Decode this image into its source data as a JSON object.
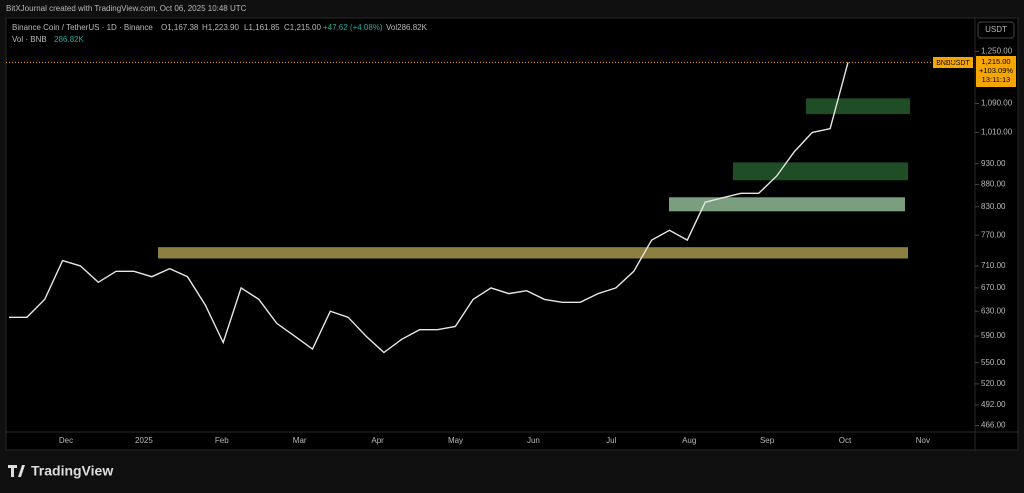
{
  "header": {
    "credit": "BitXJournal created with TradingView.com, Oct 06, 2025 10:48 UTC",
    "symbol": "Binance Coin / TetherUS · 1D · Binance",
    "open": "O1,167.38",
    "high": "H1,223.90",
    "low": "L1,161.85",
    "close": "C1,215.00",
    "change": "+47.62 (+4.08%)",
    "volume": "Vol286.82K",
    "vol_label": "Vol · BNB",
    "vol_value": "286.82K"
  },
  "currency": "USDT",
  "price_tag": {
    "symbol": "BNBUSDT",
    "price": "1,215.00",
    "change": "+103.09%",
    "countdown": "13:11:13"
  },
  "footer": {
    "brand": "TradingView"
  },
  "chart_data": {
    "type": "line",
    "log_scale": true,
    "month_labels": [
      "Dec",
      "2025",
      "Feb",
      "Mar",
      "Apr",
      "May",
      "Jun",
      "Jul",
      "Aug",
      "Sep",
      "Oct",
      "Nov"
    ],
    "series": [
      {
        "name": "BNBUSDT",
        "color": "#e6e6e6",
        "values": [
          620,
          620,
          650,
          720,
          710,
          680,
          700,
          700,
          690,
          705,
          690,
          640,
          580,
          670,
          650,
          610,
          590,
          570,
          630,
          620,
          590,
          565,
          585,
          600,
          600,
          605,
          650,
          670,
          660,
          665,
          650,
          645,
          645,
          660,
          670,
          700,
          760,
          780,
          760,
          840,
          850,
          860,
          860,
          900,
          960,
          1010,
          1020,
          1215
        ]
      }
    ],
    "zones": [
      {
        "low": 1060,
        "high": 1105,
        "color": "#1e4d26"
      },
      {
        "low": 890,
        "high": 933,
        "color": "#1e4d26"
      },
      {
        "low": 820,
        "high": 851,
        "color": "#7a9e7e"
      },
      {
        "low": 724,
        "high": 746,
        "color": "#8c8040"
      }
    ],
    "ylim": [
      458,
      1366
    ],
    "yticks": [
      {
        "value": 1250,
        "label": "1,250.00"
      },
      {
        "value": 1090,
        "label": "1,090.00"
      },
      {
        "value": 1010,
        "label": "1,010.00"
      },
      {
        "value": 930,
        "label": "930.00"
      },
      {
        "value": 880,
        "label": "880.00"
      },
      {
        "value": 830,
        "label": "830.00"
      },
      {
        "value": 770,
        "label": "770.00"
      },
      {
        "value": 710,
        "label": "710.00"
      },
      {
        "value": 670,
        "label": "670.00"
      },
      {
        "value": 630,
        "label": "630.00"
      },
      {
        "value": 590,
        "label": "590.00"
      },
      {
        "value": 550,
        "label": "550.00"
      },
      {
        "value": 520,
        "label": "520.00"
      },
      {
        "value": 492,
        "label": "492.00"
      },
      {
        "value": 466,
        "label": "466.00"
      }
    ],
    "last_price_line": true
  }
}
